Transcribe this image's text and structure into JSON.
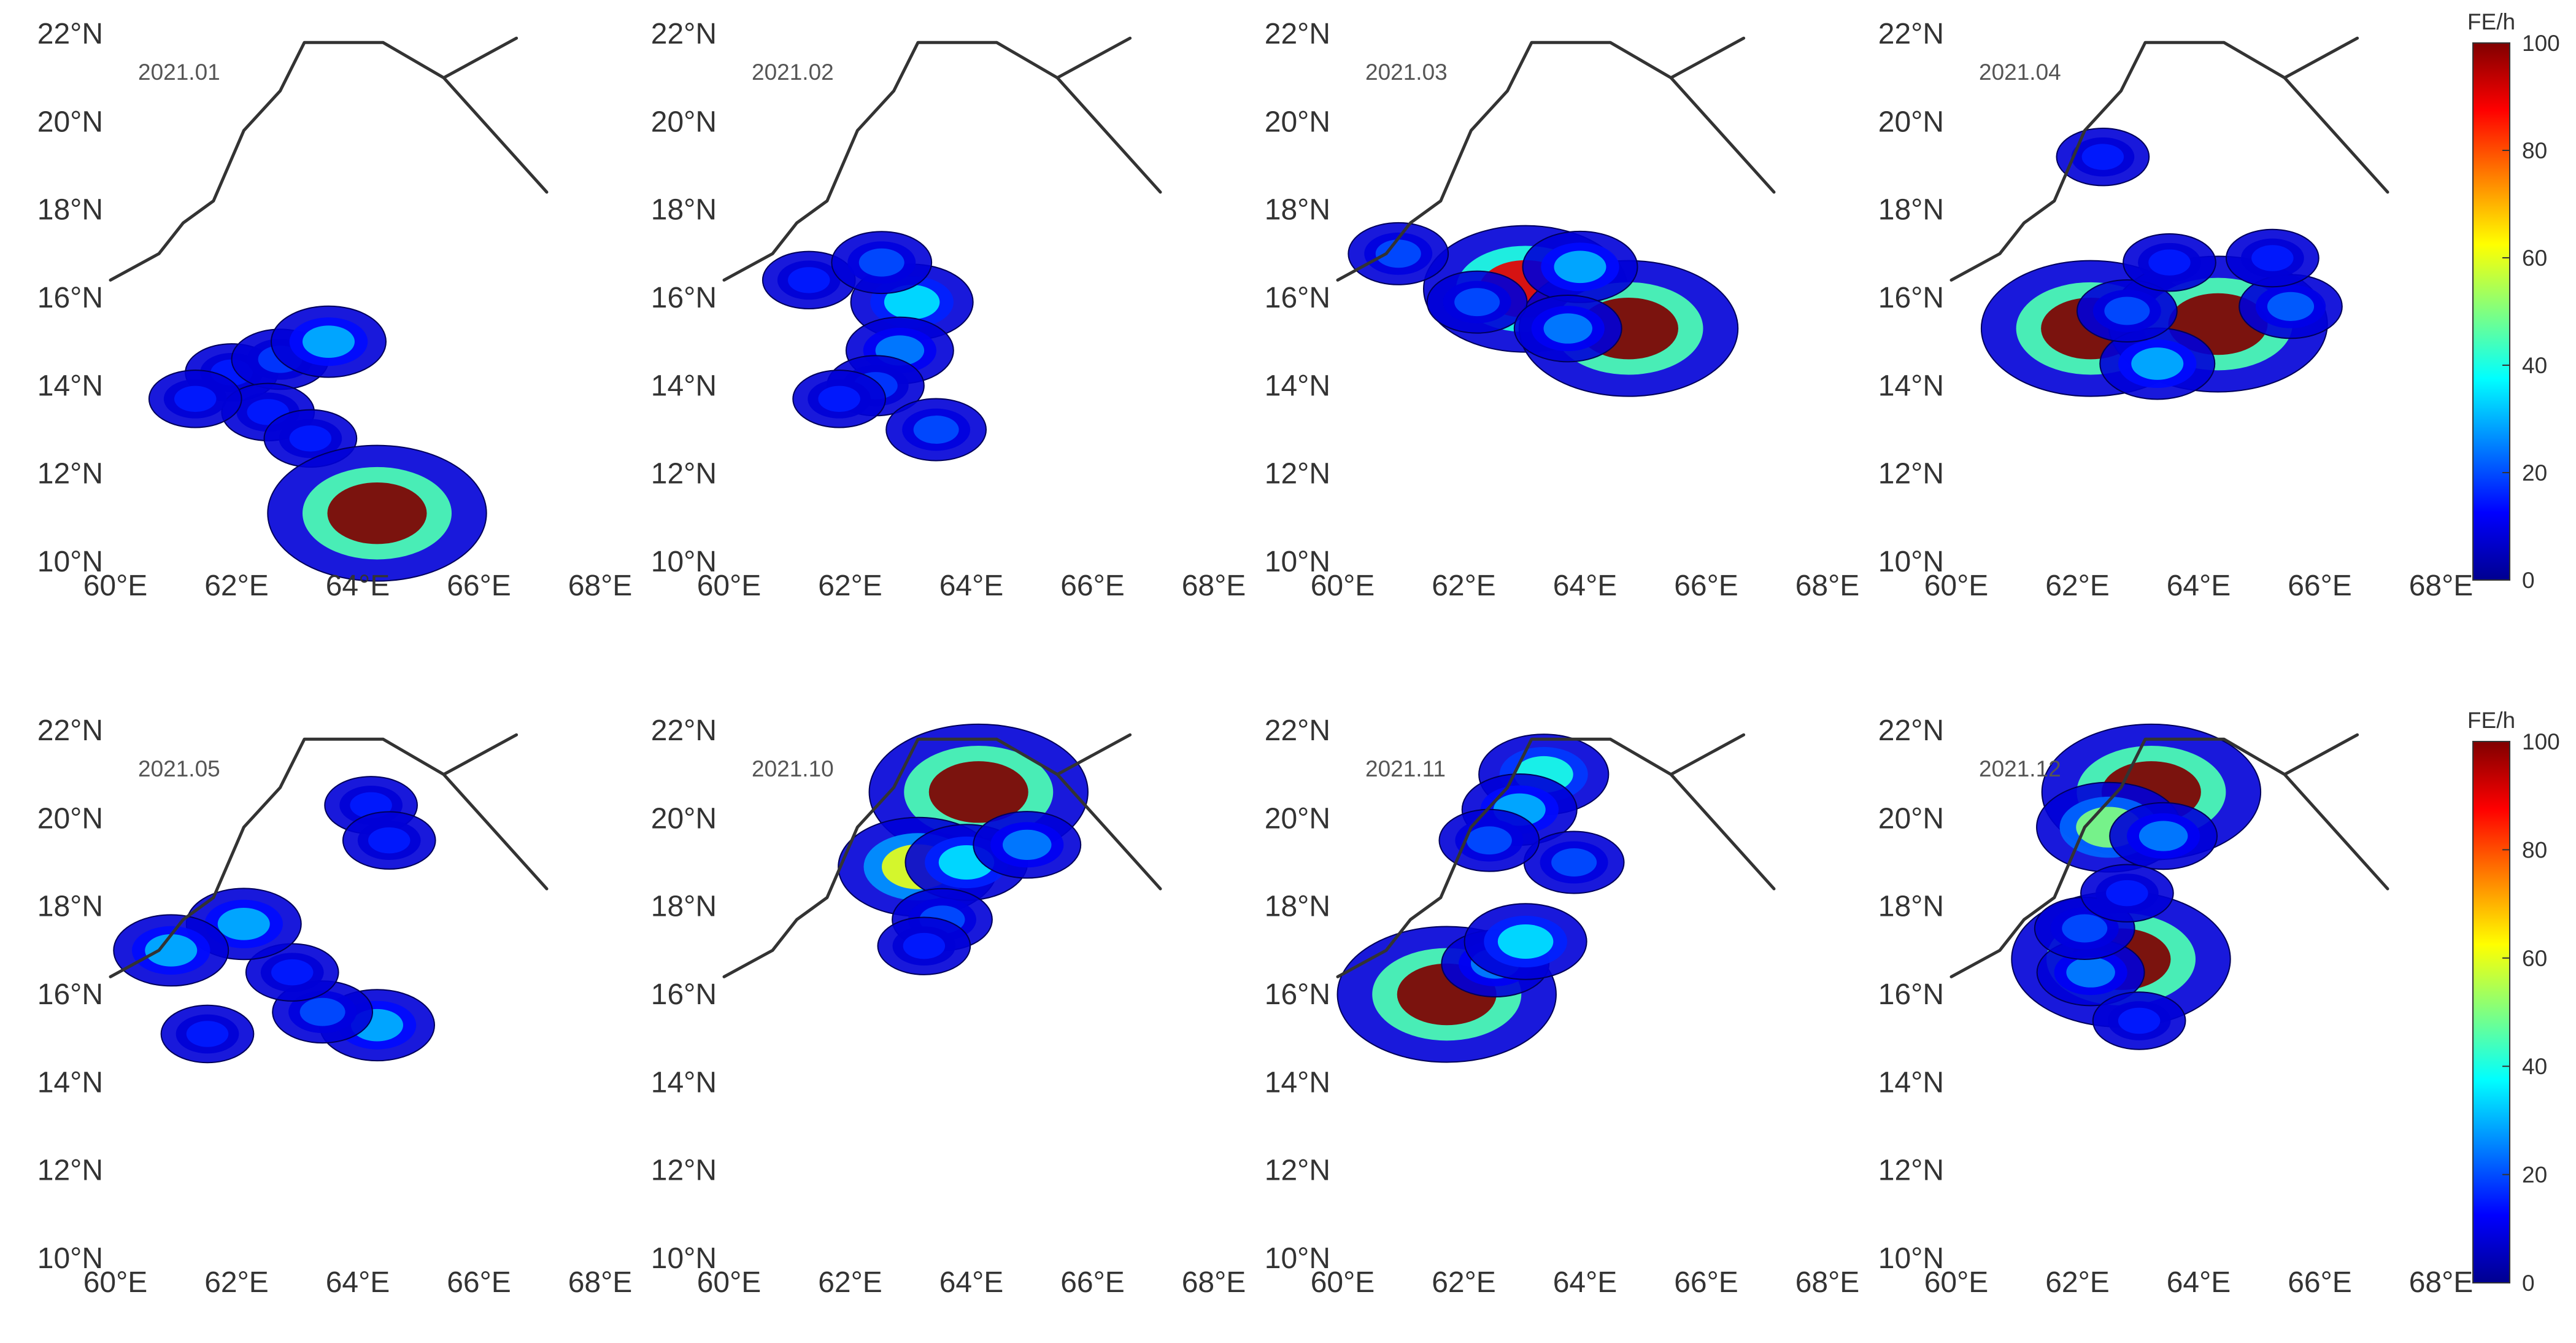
{
  "figure": {
    "lat_labels": [
      "22°N",
      "20°N",
      "18°N",
      "16°N",
      "14°N",
      "12°N",
      "10°N"
    ],
    "lon_labels": [
      "60°E",
      "62°E",
      "64°E",
      "66°E",
      "68°E"
    ],
    "panels": [
      {
        "month": "2021.01",
        "hotspots": [
          {
            "lon": 62.0,
            "lat": 14.3,
            "intensity": 15
          },
          {
            "lon": 62.8,
            "lat": 14.6,
            "intensity": 18
          },
          {
            "lon": 63.6,
            "lat": 15.0,
            "intensity": 30
          },
          {
            "lon": 62.6,
            "lat": 13.4,
            "intensity": 15
          },
          {
            "lon": 63.3,
            "lat": 12.8,
            "intensity": 15
          },
          {
            "lon": 61.4,
            "lat": 13.7,
            "intensity": 15
          },
          {
            "lon": 64.4,
            "lat": 11.1,
            "intensity": 100
          }
        ]
      },
      {
        "month": "2021.02",
        "hotspots": [
          {
            "lon": 63.1,
            "lat": 15.9,
            "intensity": 35
          },
          {
            "lon": 62.9,
            "lat": 14.8,
            "intensity": 25
          },
          {
            "lon": 62.5,
            "lat": 14.0,
            "intensity": 18
          },
          {
            "lon": 61.4,
            "lat": 16.4,
            "intensity": 15
          },
          {
            "lon": 62.6,
            "lat": 16.8,
            "intensity": 20
          },
          {
            "lon": 63.5,
            "lat": 13.0,
            "intensity": 20
          },
          {
            "lon": 61.9,
            "lat": 13.7,
            "intensity": 15
          }
        ]
      },
      {
        "month": "2021.03",
        "hotspots": [
          {
            "lon": 63.1,
            "lat": 16.2,
            "intensity": 90
          },
          {
            "lon": 64.8,
            "lat": 15.3,
            "intensity": 100
          },
          {
            "lon": 62.3,
            "lat": 15.9,
            "intensity": 20
          },
          {
            "lon": 64.0,
            "lat": 16.7,
            "intensity": 30
          },
          {
            "lon": 63.8,
            "lat": 15.3,
            "intensity": 25
          },
          {
            "lon": 61.0,
            "lat": 17.0,
            "intensity": 20
          }
        ]
      },
      {
        "month": "2021.04",
        "hotspots": [
          {
            "lon": 62.3,
            "lat": 15.3,
            "intensity": 100
          },
          {
            "lon": 64.4,
            "lat": 15.4,
            "intensity": 100
          },
          {
            "lon": 63.4,
            "lat": 14.5,
            "intensity": 30
          },
          {
            "lon": 65.6,
            "lat": 15.8,
            "intensity": 22
          },
          {
            "lon": 62.9,
            "lat": 15.7,
            "intensity": 20
          },
          {
            "lon": 63.6,
            "lat": 16.8,
            "intensity": 15
          },
          {
            "lon": 65.3,
            "lat": 16.9,
            "intensity": 15
          },
          {
            "lon": 62.5,
            "lat": 19.2,
            "intensity": 15
          }
        ]
      },
      {
        "month": "2021.05",
        "hotspots": [
          {
            "lon": 64.4,
            "lat": 15.3,
            "intensity": 30
          },
          {
            "lon": 63.5,
            "lat": 15.6,
            "intensity": 20
          },
          {
            "lon": 64.3,
            "lat": 20.3,
            "intensity": 15
          },
          {
            "lon": 63.0,
            "lat": 16.5,
            "intensity": 15
          },
          {
            "lon": 62.2,
            "lat": 17.6,
            "intensity": 30
          },
          {
            "lon": 61.0,
            "lat": 17.0,
            "intensity": 30
          },
          {
            "lon": 64.6,
            "lat": 19.5,
            "intensity": 15
          },
          {
            "lon": 61.6,
            "lat": 15.1,
            "intensity": 15
          }
        ]
      },
      {
        "month": "2021.10",
        "hotspots": [
          {
            "lon": 64.2,
            "lat": 20.6,
            "intensity": 100
          },
          {
            "lon": 63.2,
            "lat": 18.9,
            "intensity": 60
          },
          {
            "lon": 64.0,
            "lat": 19.0,
            "intensity": 35
          },
          {
            "lon": 65.0,
            "lat": 19.4,
            "intensity": 25
          },
          {
            "lon": 63.6,
            "lat": 17.7,
            "intensity": 20
          },
          {
            "lon": 63.3,
            "lat": 17.1,
            "intensity": 15
          }
        ]
      },
      {
        "month": "2021.11",
        "hotspots": [
          {
            "lon": 61.8,
            "lat": 16.0,
            "intensity": 100
          },
          {
            "lon": 63.4,
            "lat": 21.0,
            "intensity": 40
          },
          {
            "lon": 63.0,
            "lat": 20.2,
            "intensity": 30
          },
          {
            "lon": 62.6,
            "lat": 16.7,
            "intensity": 25
          },
          {
            "lon": 63.1,
            "lat": 17.2,
            "intensity": 35
          },
          {
            "lon": 63.9,
            "lat": 19.0,
            "intensity": 20
          },
          {
            "lon": 62.5,
            "lat": 19.5,
            "intensity": 20
          }
        ]
      },
      {
        "month": "2021.12",
        "hotspots": [
          {
            "lon": 63.3,
            "lat": 20.6,
            "intensity": 100
          },
          {
            "lon": 62.8,
            "lat": 16.8,
            "intensity": 100
          },
          {
            "lon": 62.6,
            "lat": 19.8,
            "intensity": 50
          },
          {
            "lon": 62.3,
            "lat": 16.5,
            "intensity": 25
          },
          {
            "lon": 63.5,
            "lat": 19.6,
            "intensity": 25
          },
          {
            "lon": 62.2,
            "lat": 17.5,
            "intensity": 20
          },
          {
            "lon": 62.9,
            "lat": 18.3,
            "intensity": 15
          },
          {
            "lon": 63.1,
            "lat": 15.4,
            "intensity": 15
          }
        ]
      }
    ]
  },
  "colorbar": {
    "title": "FE/h",
    "ticks": [
      "100",
      "80",
      "60",
      "40",
      "20",
      "0"
    ],
    "range": [
      0,
      100
    ],
    "colormap": [
      "#00008f",
      "#0000ff",
      "#0080ff",
      "#00ffff",
      "#80ff80",
      "#ffff00",
      "#ff8000",
      "#ff0000",
      "#800000"
    ]
  }
}
